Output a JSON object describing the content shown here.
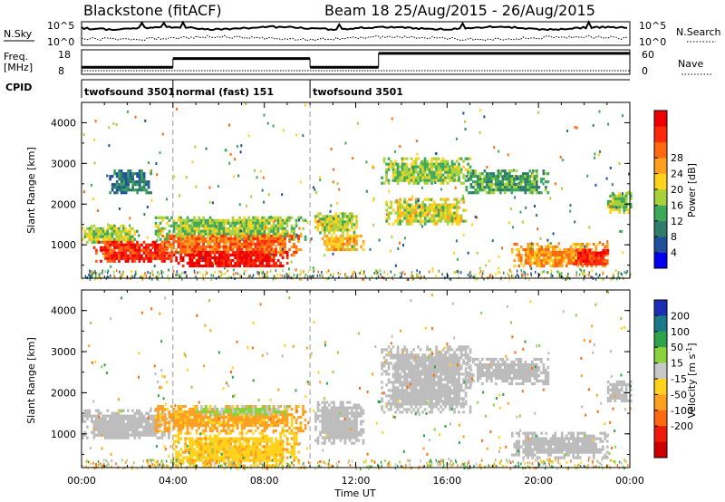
{
  "header": {
    "title": "Blackstone (fitACF)",
    "subtitle": "Beam 18 25/Aug/2015 - 26/Aug/2015"
  },
  "noise": {
    "left_label": "N.Sky",
    "right_label": "N.Search",
    "left_ticks": [
      "10^5",
      "10^0"
    ],
    "right_ticks": [
      "10^5",
      "10^0"
    ]
  },
  "frequency": {
    "left_label_1": "Freq.",
    "left_label_2": "[MHz]",
    "left_ticks": [
      "18",
      "8"
    ],
    "right_label": "Nave",
    "right_ticks": [
      "60",
      "0"
    ]
  },
  "cpid": {
    "label": "CPID",
    "segments": [
      {
        "text": "twofsound 3501",
        "start_hour": 0
      },
      {
        "text": "normal (fast) 151",
        "start_hour": 4
      },
      {
        "text": "twofsound 3501",
        "start_hour": 10
      }
    ]
  },
  "time_axis": {
    "label": "Time UT",
    "ticks": [
      "00:00",
      "04:00",
      "08:00",
      "12:00",
      "16:00",
      "20:00",
      "00:00"
    ]
  },
  "power_panel": {
    "ylabel": "Slant Range [km]",
    "yticks": [
      "1000",
      "2000",
      "3000",
      "4000"
    ],
    "colorbar_label": "Power [dB]",
    "colorbar_ticks": [
      "4",
      "8",
      "12",
      "16",
      "20",
      "24",
      "28"
    ],
    "colors": [
      "#0000ee",
      "#1f4e9c",
      "#2e7d6a",
      "#3ca85a",
      "#a8d23a",
      "#ffd21e",
      "#ffa020",
      "#ff6a10",
      "#ff2a0a",
      "#ee0000"
    ]
  },
  "velocity_panel": {
    "ylabel": "Slant Range [km]",
    "yticks": [
      "1000",
      "2000",
      "3000",
      "4000"
    ],
    "colorbar_label": "Velocity [m s^-1]",
    "colorbar_ticks": [
      "200",
      "100",
      "50",
      "15",
      "-15",
      "-50",
      "-100",
      "-200"
    ],
    "colors": [
      "#1a2fb4",
      "#1a7a8a",
      "#2ea44a",
      "#8cd23c",
      "#c8c8c8",
      "#ffd21e",
      "#ffa020",
      "#ff6a10",
      "#ee1a0a",
      "#cc0000"
    ],
    "ground_scatter_color": "#bcbcbc"
  },
  "chart_data": {
    "type": "heatmap",
    "title": "Blackstone (fitACF)",
    "subtitle": "Beam 18 25/Aug/2015 - 26/Aug/2015",
    "x": {
      "label": "Time UT",
      "range_hours": [
        0,
        24
      ],
      "tick_hours": [
        0,
        4,
        8,
        12,
        16,
        20,
        24
      ]
    },
    "y": {
      "label": "Slant Range [km]",
      "range_km": [
        180,
        4500
      ],
      "ticks_km": [
        1000,
        2000,
        3000,
        4000
      ]
    },
    "frequency_mhz": {
      "segments": [
        {
          "start_hour": 0,
          "end_hour": 4,
          "value": 10
        },
        {
          "start_hour": 4,
          "end_hour": 10,
          "value": 15
        },
        {
          "start_hour": 10,
          "end_hour": 13,
          "value": 10
        },
        {
          "start_hour": 13,
          "end_hour": 24,
          "value": 18
        }
      ]
    },
    "power_regions_db": [
      {
        "t": [
          0.0,
          2.4
        ],
        "r": [
          1050,
          1500
        ],
        "value": 14
      },
      {
        "t": [
          0.5,
          4.0
        ],
        "r": [
          600,
          1100
        ],
        "value": 26
      },
      {
        "t": [
          3.2,
          9.8
        ],
        "r": [
          1150,
          1700
        ],
        "value": 13
      },
      {
        "t": [
          3.4,
          9.6
        ],
        "r": [
          750,
          1250
        ],
        "value": 22
      },
      {
        "t": [
          4.0,
          9.0
        ],
        "r": [
          450,
          850
        ],
        "value": 28
      },
      {
        "t": [
          1.2,
          3.0
        ],
        "r": [
          2300,
          2850
        ],
        "value": 7
      },
      {
        "t": [
          10.2,
          12.0
        ],
        "r": [
          1300,
          1800
        ],
        "value": 14
      },
      {
        "t": [
          10.5,
          12.3
        ],
        "r": [
          850,
          1250
        ],
        "value": 18
      },
      {
        "t": [
          13.1,
          17.0
        ],
        "r": [
          2500,
          3150
        ],
        "value": 13
      },
      {
        "t": [
          13.3,
          16.8
        ],
        "r": [
          1500,
          2150
        ],
        "value": 15
      },
      {
        "t": [
          16.8,
          20.4
        ],
        "r": [
          2250,
          2850
        ],
        "value": 10
      },
      {
        "t": [
          18.8,
          23.0
        ],
        "r": [
          450,
          1050
        ],
        "value": 20
      },
      {
        "t": [
          21.5,
          23.0
        ],
        "r": [
          550,
          900
        ],
        "value": 27
      },
      {
        "t": [
          23.0,
          24.0
        ],
        "r": [
          1800,
          2300
        ],
        "value": 13
      }
    ],
    "velocity_regions_ms": [
      {
        "t": [
          0.0,
          3.8
        ],
        "r": [
          900,
          1600
        ],
        "value": "ground scatter"
      },
      {
        "t": [
          3.2,
          9.8
        ],
        "r": [
          1100,
          1700
        ],
        "value": -60
      },
      {
        "t": [
          4.0,
          9.5
        ],
        "r": [
          250,
          1050
        ],
        "value": -40
      },
      {
        "t": [
          5.0,
          9.0
        ],
        "r": [
          1500,
          1700
        ],
        "value": 20
      },
      {
        "t": [
          10.2,
          12.3
        ],
        "r": [
          800,
          1800
        ],
        "value": "ground scatter"
      },
      {
        "t": [
          13.1,
          17.0
        ],
        "r": [
          1500,
          3150
        ],
        "value": "ground scatter"
      },
      {
        "t": [
          16.8,
          20.4
        ],
        "r": [
          2250,
          2850
        ],
        "value": "ground scatter"
      },
      {
        "t": [
          18.8,
          23.0
        ],
        "r": [
          450,
          1050
        ],
        "value": "ground scatter"
      },
      {
        "t": [
          23.0,
          24.0
        ],
        "r": [
          1800,
          2300
        ],
        "value": "ground scatter"
      }
    ],
    "power_colorbar_range_db": [
      0,
      30
    ],
    "velocity_colorbar_range_ms": [
      -250,
      250
    ]
  }
}
